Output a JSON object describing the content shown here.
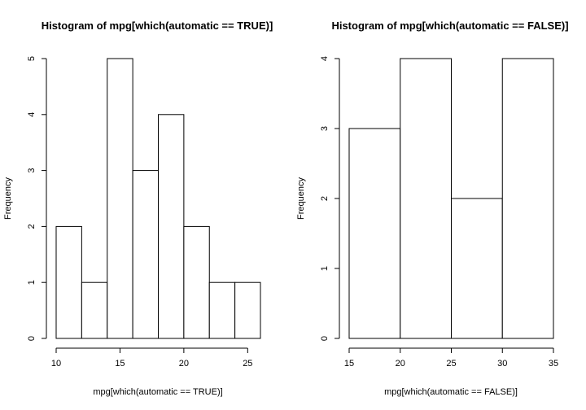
{
  "chart_data": [
    {
      "type": "bar",
      "title": "Histogram of mpg[which(automatic == TRUE)]",
      "xlabel": "mpg[which(automatic == TRUE)]",
      "ylabel": "Frequency",
      "bins": [
        [
          10,
          12
        ],
        [
          12,
          14
        ],
        [
          14,
          16
        ],
        [
          16,
          18
        ],
        [
          18,
          20
        ],
        [
          20,
          22
        ],
        [
          22,
          24
        ],
        [
          24,
          26
        ]
      ],
      "values": [
        2,
        1,
        5,
        3,
        4,
        2,
        1,
        1
      ],
      "xlim": [
        10,
        26
      ],
      "ylim": [
        0,
        5
      ],
      "xticks": [
        10,
        15,
        20,
        25
      ],
      "yticks": [
        0,
        1,
        2,
        3,
        4,
        5
      ],
      "grid": false
    },
    {
      "type": "bar",
      "title": "Histogram of mpg[which(automatic == FALSE)]",
      "xlabel": "mpg[which(automatic == FALSE)]",
      "ylabel": "Frequency",
      "bins": [
        [
          15,
          20
        ],
        [
          20,
          25
        ],
        [
          25,
          30
        ],
        [
          30,
          35
        ]
      ],
      "values": [
        3,
        4,
        2,
        4
      ],
      "xlim": [
        15,
        35
      ],
      "ylim": [
        0,
        4
      ],
      "xticks": [
        15,
        20,
        25,
        30,
        35
      ],
      "yticks": [
        0,
        1,
        2,
        3,
        4
      ],
      "grid": false
    }
  ]
}
